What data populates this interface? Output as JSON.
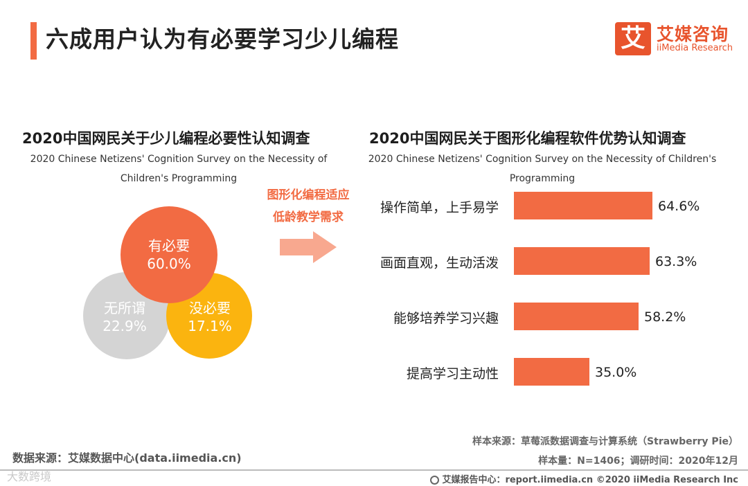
{
  "header": {
    "title": "六成用户认为有必要学习少儿编程",
    "logo_mark": "艾",
    "logo_cn": "艾媒咨询",
    "logo_en": "iiMedia Research"
  },
  "left_chart": {
    "title_cn": "2020中国网民关于少儿编程必要性认知调查",
    "title_en": "2020 Chinese Netizens' Cognition Survey on the Necessity of Children's Programming"
  },
  "arrow": {
    "line1": "图形化编程适应",
    "line2": "低龄教学需求"
  },
  "right_chart": {
    "title_cn": "2020中国网民关于图形化编程软件优势认知调查",
    "title_en": "2020 Chinese Netizens' Cognition Survey on the Necessity of Children's Programming"
  },
  "chart_data": [
    {
      "type": "pie",
      "title": "2020中国网民关于少儿编程必要性认知调查",
      "subtitle": "2020 Chinese Netizens' Cognition Survey on the Necessity of Children's Programming",
      "categories": [
        "有必要",
        "没必要",
        "无所谓"
      ],
      "values": [
        60.0,
        17.1,
        22.9
      ],
      "labels": [
        "60.0%",
        "17.1%",
        "22.9%"
      ],
      "colors": [
        "#f26b43",
        "#fbb40f",
        "#d4d4d4"
      ]
    },
    {
      "type": "bar",
      "orientation": "horizontal",
      "title": "2020中国网民关于图形化编程软件优势认知调查",
      "subtitle": "2020 Chinese Netizens' Cognition Survey on the Necessity of Children's Programming",
      "categories": [
        "操作简单，上手易学",
        "画面直观，生动活泼",
        "能够培养学习兴趣",
        "提高学习主动性"
      ],
      "values": [
        64.6,
        63.3,
        58.2,
        35.0
      ],
      "labels": [
        "64.6%",
        "63.3%",
        "58.2%",
        "35.0%"
      ],
      "color": "#f26b43"
    }
  ],
  "footer": {
    "source": "数据来源：艾媒数据中心(data.iimedia.cn)",
    "sample_source": "样本来源：草莓派数据调查与计算系统（Strawberry Pie）",
    "sample_size": "样本量：N=1406；调研时间：2020年12月",
    "report": "艾媒报告中心：report.iimedia.cn  ©2020 iiMedia Research  Inc",
    "watermark": "大数跨境"
  }
}
